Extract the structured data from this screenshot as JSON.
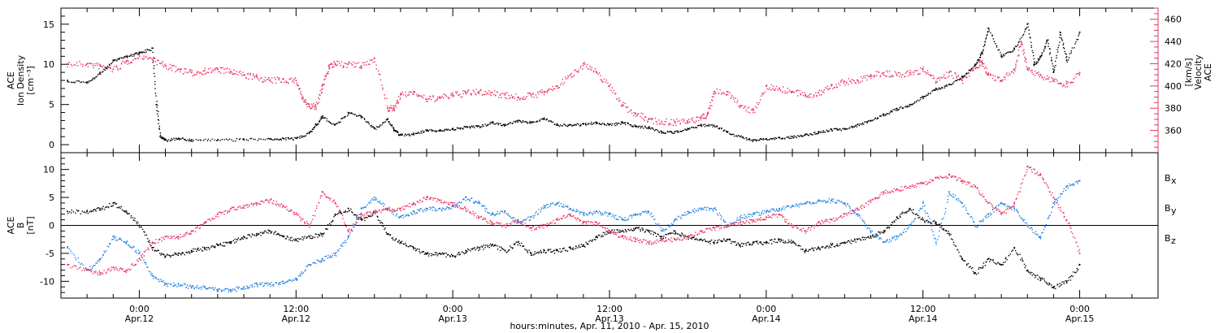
{
  "chart_data": [
    {
      "type": "scatter",
      "panel": "plasma",
      "left_axis": {
        "label_lines": [
          "ACE",
          "Ion Density",
          "[cm⁻³]"
        ],
        "ticks": [
          0,
          5,
          10,
          15
        ],
        "range": [
          -1,
          17
        ]
      },
      "right_axis": {
        "label_lines": [
          "ACE",
          "Velocity",
          "[km/s]"
        ],
        "ticks": [
          360,
          380,
          400,
          420,
          440,
          460
        ],
        "range": [
          340,
          470
        ],
        "color": "#e8335f"
      },
      "series": [
        {
          "color": "#000000",
          "axis": "left",
          "x": [
            -5.5,
            -4,
            -3,
            -2,
            -1,
            0,
            1,
            1.3,
            1.6,
            2,
            3,
            4,
            6,
            8,
            10,
            11,
            12,
            13,
            13.5,
            14,
            15,
            16,
            17,
            18,
            19,
            19.5,
            20,
            21,
            22,
            23,
            24,
            25,
            26,
            27,
            28,
            29,
            30,
            31,
            32,
            33,
            34,
            35,
            36,
            37,
            38,
            39,
            40,
            41,
            42,
            43,
            44,
            45,
            46,
            47,
            48,
            49,
            50,
            51,
            52,
            53,
            54,
            55,
            56,
            57,
            58,
            59,
            60,
            61,
            62,
            63,
            64,
            64.5,
            65,
            66,
            67,
            68,
            68.5,
            69,
            69.5,
            70,
            70.5,
            71,
            72
          ],
          "values": [
            8,
            7.8,
            9,
            10.5,
            11,
            11.5,
            12,
            5,
            1,
            0.6,
            0.8,
            0.6,
            0.6,
            0.7,
            0.7,
            0.8,
            0.8,
            1.5,
            2.5,
            3.5,
            2.5,
            4,
            3.5,
            2,
            3.2,
            1.8,
            1.2,
            1.4,
            1.8,
            1.8,
            2,
            2.2,
            2.3,
            2.8,
            2.5,
            3,
            2.8,
            3.3,
            2.5,
            2.5,
            2.6,
            2.8,
            2.5,
            2.8,
            2.3,
            2.2,
            1.6,
            1.6,
            2.0,
            2.5,
            2.4,
            1.6,
            1.0,
            0.6,
            0.7,
            0.9,
            1.0,
            1.3,
            1.6,
            1.9,
            2.0,
            2.5,
            3.0,
            3.8,
            4.5,
            5.0,
            6.0,
            7.0,
            7.5,
            8.5,
            10,
            11.5,
            14.5,
            11,
            12,
            15,
            10,
            11,
            13,
            9,
            14,
            10.5,
            14
          ]
        },
        {
          "color": "#e8335f",
          "axis": "right",
          "x": [
            -5.5,
            -4,
            -3,
            -2,
            -1,
            0,
            1,
            2,
            3,
            4,
            5,
            6,
            7,
            8,
            9,
            10,
            11,
            12,
            12.5,
            13,
            13.5,
            14,
            14.5,
            15,
            16,
            17,
            18,
            19,
            19.5,
            20,
            21,
            22,
            23,
            24,
            25,
            26,
            27,
            28,
            29,
            30,
            31,
            32,
            33,
            34,
            35,
            36,
            37,
            38,
            39,
            40,
            41,
            42,
            43,
            43.5,
            44,
            45,
            46,
            47,
            48,
            49,
            50,
            51,
            52,
            53,
            54,
            55,
            56,
            57,
            58,
            59,
            60,
            61,
            62,
            63,
            64,
            64.5,
            65,
            66,
            67,
            67.5,
            68,
            69,
            70,
            71,
            72
          ],
          "values": [
            420,
            420,
            418,
            415,
            422,
            428,
            424,
            418,
            415,
            412,
            414,
            415,
            413,
            410,
            408,
            405,
            406,
            405,
            388,
            382,
            382,
            400,
            418,
            420,
            420,
            418,
            425,
            380,
            380,
            392,
            395,
            388,
            390,
            392,
            394,
            395,
            394,
            392,
            390,
            392,
            395,
            400,
            410,
            420,
            412,
            400,
            383,
            375,
            370,
            368,
            368,
            368,
            372,
            375,
            395,
            395,
            382,
            378,
            400,
            398,
            395,
            392,
            394,
            400,
            404,
            405,
            410,
            412,
            410,
            412,
            415,
            404,
            412,
            405,
            418,
            422,
            410,
            405,
            415,
            440,
            415,
            410,
            405,
            402,
            412
          ]
        }
      ]
    },
    {
      "type": "scatter",
      "panel": "magnetic-field",
      "left_axis": {
        "label_lines": [
          "ACE",
          "B",
          "[nT]"
        ],
        "ticks": [
          -10,
          -5,
          0,
          5,
          10
        ],
        "range": [
          -13,
          13
        ]
      },
      "zero_line": true,
      "series": [
        {
          "name": "Bx",
          "color": "#000000",
          "x": [
            -5.5,
            -4,
            -3,
            -2,
            -1,
            0,
            1,
            2,
            3,
            4,
            5,
            6,
            7,
            8,
            9,
            10,
            11,
            12,
            13,
            14,
            15,
            16,
            17,
            18,
            19,
            20,
            21,
            22,
            23,
            24,
            25,
            26,
            27,
            28,
            29,
            30,
            31,
            32,
            33,
            34,
            35,
            36,
            37,
            38,
            39,
            40,
            41,
            42,
            43,
            44,
            45,
            46,
            47,
            48,
            49,
            50,
            51,
            52,
            53,
            54,
            55,
            56,
            57,
            58,
            59,
            60,
            61,
            62,
            63,
            64,
            65,
            66,
            67,
            68,
            69,
            70,
            71,
            72
          ],
          "values": [
            2.5,
            2.5,
            3,
            4,
            2.5,
            0,
            -4,
            -5.5,
            -5,
            -4.5,
            -4,
            -3.5,
            -3,
            -2,
            -1.5,
            -1,
            -2,
            -2.5,
            -2,
            -1.5,
            2,
            3,
            1,
            2.5,
            -1.5,
            -3,
            -4,
            -5,
            -5,
            -5.5,
            -4.5,
            -4,
            -3.5,
            -4.5,
            -3,
            -5,
            -4.5,
            -4.5,
            -4,
            -3.5,
            -2,
            -1,
            -1,
            -0.5,
            -1,
            -2,
            -1,
            -2,
            -2.5,
            -3,
            -2.5,
            -3.5,
            -3,
            -3,
            -2.5,
            -3,
            -4.5,
            -4,
            -3.5,
            -3,
            -2.5,
            -2,
            -1,
            1.5,
            3,
            1,
            0.5,
            -1.5,
            -6,
            -8.5,
            -6,
            -7,
            -4,
            -8,
            -9.5,
            -11,
            -10,
            -7
          ]
        },
        {
          "name": "By",
          "color": "#1f7fe0",
          "x": [
            -5.5,
            -4,
            -3,
            -2,
            -1,
            0,
            1,
            2,
            3,
            4,
            5,
            6,
            7,
            8,
            9,
            10,
            11,
            12,
            13,
            14,
            15,
            16,
            17,
            18,
            19,
            20,
            21,
            22,
            23,
            24,
            25,
            26,
            27,
            28,
            29,
            30,
            31,
            32,
            33,
            34,
            35,
            36,
            37,
            38,
            39,
            40,
            41,
            42,
            43,
            44,
            45,
            46,
            47,
            48,
            49,
            50,
            51,
            52,
            53,
            54,
            55,
            56,
            57,
            58,
            59,
            60,
            61,
            62,
            63,
            64,
            65,
            66,
            67,
            68,
            69,
            70,
            71,
            72
          ],
          "values": [
            -4,
            -8,
            -6,
            -2,
            -3,
            -5,
            -9,
            -10.5,
            -10.5,
            -11,
            -11,
            -11.5,
            -11.5,
            -11,
            -10.5,
            -10.5,
            -10,
            -9.5,
            -7,
            -6,
            -5,
            -2,
            3,
            5,
            3,
            1.5,
            2.5,
            3,
            3,
            3.5,
            5,
            4,
            2,
            2.5,
            0.5,
            1.5,
            3.5,
            4,
            3,
            2,
            2.5,
            2,
            1,
            2,
            2.5,
            -1,
            1,
            2.5,
            3,
            3,
            0,
            1.5,
            2,
            2.5,
            3,
            3.5,
            4,
            4.5,
            4.5,
            4,
            2,
            -1,
            -3,
            -2,
            0,
            4,
            -3,
            6,
            4,
            0,
            2,
            4,
            3,
            0,
            -2,
            4,
            7,
            8
          ]
        },
        {
          "name": "Bz",
          "color": "#e8335f",
          "x": [
            -5.5,
            -4,
            -3,
            -2,
            -1,
            0,
            1,
            2,
            3,
            4,
            5,
            6,
            7,
            8,
            9,
            10,
            11,
            12,
            13,
            14,
            15,
            16,
            17,
            18,
            19,
            20,
            21,
            22,
            23,
            24,
            25,
            26,
            27,
            28,
            29,
            30,
            31,
            32,
            33,
            34,
            35,
            36,
            37,
            38,
            39,
            40,
            41,
            42,
            43,
            44,
            45,
            46,
            47,
            48,
            49,
            50,
            51,
            52,
            53,
            54,
            55,
            56,
            57,
            58,
            59,
            60,
            61,
            62,
            63,
            64,
            65,
            66,
            67,
            68,
            69,
            70,
            71,
            72
          ],
          "values": [
            -7,
            -8,
            -8.5,
            -7.5,
            -8,
            -6,
            -3,
            -2,
            -2,
            -1,
            0.5,
            2,
            3,
            3.5,
            4,
            4.5,
            3.5,
            2,
            0,
            6,
            4,
            -1,
            2,
            2.5,
            3,
            3,
            4,
            5,
            4.5,
            4,
            3,
            1.5,
            0.5,
            0,
            1,
            -0.5,
            0,
            1,
            2,
            0.5,
            0.5,
            -1,
            -2,
            -2.5,
            -3,
            -2.5,
            -2.5,
            -2,
            -1,
            -0.5,
            0,
            0.5,
            1,
            1.5,
            2,
            0,
            -1,
            0.5,
            1,
            2,
            3,
            4.5,
            6,
            6.5,
            7,
            7.5,
            8.5,
            9,
            8,
            7,
            4,
            2,
            4,
            10.5,
            9,
            5,
            1,
            -5
          ]
        }
      ],
      "legend": [
        {
          "label": "B",
          "sub": "x",
          "color": "#000000"
        },
        {
          "label": "B",
          "sub": "y",
          "color": "#1f7fe0"
        },
        {
          "label": "B",
          "sub": "z",
          "color": "#e8335f"
        }
      ]
    }
  ],
  "x_axis": {
    "title": "hours:minutes, Apr. 11, 2010 - Apr. 15, 2010",
    "range_hours": [
      -6,
      78
    ],
    "ticks": [
      {
        "h": 0,
        "time": "0:00",
        "date": "Apr.12"
      },
      {
        "h": 12,
        "time": "12:00",
        "date": "Apr.12"
      },
      {
        "h": 24,
        "time": "0:00",
        "date": "Apr.13"
      },
      {
        "h": 36,
        "time": "12:00",
        "date": "Apr.13"
      },
      {
        "h": 48,
        "time": "0:00",
        "date": "Apr.14"
      },
      {
        "h": 60,
        "time": "12:00",
        "date": "Apr.14"
      },
      {
        "h": 72,
        "time": "0:00",
        "date": "Apr.15"
      }
    ],
    "minor_step_hours": 2
  }
}
